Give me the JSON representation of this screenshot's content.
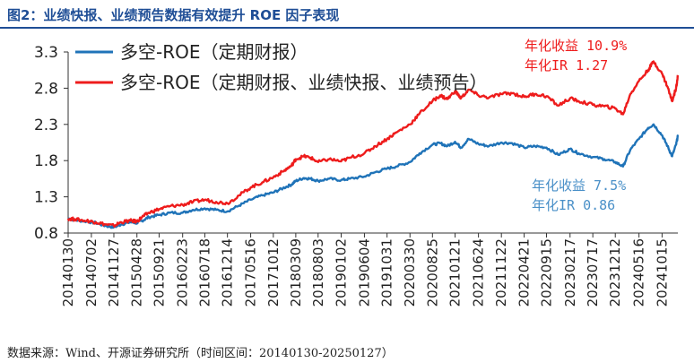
{
  "title": "图2：业绩快报、业绩预告数据有效提升 ROE 因子表现",
  "source": "数据来源：Wind、开源证券研究所（时间区间：20140130-20250127）",
  "colors": {
    "title": "#1f4e96",
    "blue": "#1f73b8",
    "red": "#ee1c1c",
    "blue_text": "#4a90c8",
    "red_text": "#ee1c1c"
  },
  "chart_data": {
    "type": "line",
    "ylim": [
      0.8,
      3.3
    ],
    "yticks": [
      "3.3",
      "2.8",
      "2.3",
      "1.8",
      "1.3",
      "0.8"
    ],
    "xlim": [
      "20140130",
      "20250127"
    ],
    "xticks": [
      "20140130",
      "20140702",
      "20141127",
      "20150428",
      "20150921",
      "20160223",
      "20160718",
      "20161214",
      "20170516",
      "20171012",
      "20180309",
      "20180803",
      "20190102",
      "20190604",
      "20191031",
      "20200330",
      "20200825",
      "20210121",
      "20210624",
      "20211122",
      "20220421",
      "20220915",
      "20230217",
      "20230717",
      "20231212",
      "20240516",
      "20241015"
    ],
    "legend": {
      "position": "top-left",
      "entries": [
        "多空-ROE（定期财报）",
        "多空-ROE（定期财报、业绩快报、业绩预告）"
      ]
    },
    "annotations": [
      {
        "series": 1,
        "lines": [
          "年化收益 10.9%",
          "年化IR 1.27"
        ]
      },
      {
        "series": 0,
        "lines": [
          "年化收益 7.5%",
          "年化IR 0.86"
        ]
      }
    ],
    "series": [
      {
        "name": "多空-ROE（定期财报）",
        "points": [
          [
            "20140130",
            1.0
          ],
          [
            "20140315",
            0.98
          ],
          [
            "20140601",
            0.96
          ],
          [
            "20140801",
            0.94
          ],
          [
            "20141001",
            0.9
          ],
          [
            "20141127",
            0.88
          ],
          [
            "20150115",
            0.92
          ],
          [
            "20150315",
            0.95
          ],
          [
            "20150428",
            0.94
          ],
          [
            "20150601",
            0.97
          ],
          [
            "20150715",
            1.02
          ],
          [
            "20150921",
            1.05
          ],
          [
            "20151201",
            1.08
          ],
          [
            "20160223",
            1.08
          ],
          [
            "20160501",
            1.12
          ],
          [
            "20160718",
            1.14
          ],
          [
            "20161001",
            1.12
          ],
          [
            "20161214",
            1.1
          ],
          [
            "20170301",
            1.18
          ],
          [
            "20170516",
            1.26
          ],
          [
            "20170801",
            1.32
          ],
          [
            "20171012",
            1.36
          ],
          [
            "20171215",
            1.42
          ],
          [
            "20180209",
            1.47
          ],
          [
            "20180309",
            1.52
          ],
          [
            "20180501",
            1.56
          ],
          [
            "20180615",
            1.55
          ],
          [
            "20180803",
            1.52
          ],
          [
            "20181015",
            1.55
          ],
          [
            "20190102",
            1.53
          ],
          [
            "20190301",
            1.55
          ],
          [
            "20190604",
            1.58
          ],
          [
            "20190815",
            1.64
          ],
          [
            "20191031",
            1.69
          ],
          [
            "20200101",
            1.72
          ],
          [
            "20200330",
            1.78
          ],
          [
            "20200601",
            1.9
          ],
          [
            "20200825",
            2.02
          ],
          [
            "20201015",
            2.04
          ],
          [
            "20201201",
            2.0
          ],
          [
            "20210121",
            2.06
          ],
          [
            "20210301",
            1.98
          ],
          [
            "20210420",
            2.1
          ],
          [
            "20210624",
            2.03
          ],
          [
            "20210901",
            2.0
          ],
          [
            "20211122",
            2.05
          ],
          [
            "20220201",
            2.04
          ],
          [
            "20220421",
            1.98
          ],
          [
            "20220701",
            2.0
          ],
          [
            "20220915",
            1.98
          ],
          [
            "20221201",
            1.88
          ],
          [
            "20230217",
            1.96
          ],
          [
            "20230415",
            1.9
          ],
          [
            "20230717",
            1.85
          ],
          [
            "20231001",
            1.82
          ],
          [
            "20231212",
            1.78
          ],
          [
            "20240201",
            1.72
          ],
          [
            "20240320",
            1.95
          ],
          [
            "20240516",
            2.1
          ],
          [
            "20240715",
            2.25
          ],
          [
            "20240820",
            2.3
          ],
          [
            "20241015",
            2.15
          ],
          [
            "20241120",
            2.0
          ],
          [
            "20241220",
            1.86
          ],
          [
            "20250115",
            2.02
          ],
          [
            "20250127",
            2.14
          ]
        ]
      },
      {
        "name": "多空-ROE（定期财报、业绩快报、业绩预告）",
        "points": [
          [
            "20140130",
            1.0
          ],
          [
            "20140315",
            0.99
          ],
          [
            "20140601",
            0.97
          ],
          [
            "20140801",
            0.95
          ],
          [
            "20141001",
            0.92
          ],
          [
            "20141127",
            0.9
          ],
          [
            "20150115",
            0.95
          ],
          [
            "20150315",
            0.97
          ],
          [
            "20150428",
            0.96
          ],
          [
            "20150601",
            1.02
          ],
          [
            "20150715",
            1.08
          ],
          [
            "20150921",
            1.13
          ],
          [
            "20151201",
            1.17
          ],
          [
            "20160223",
            1.19
          ],
          [
            "20160501",
            1.23
          ],
          [
            "20160718",
            1.26
          ],
          [
            "20161001",
            1.23
          ],
          [
            "20161214",
            1.21
          ],
          [
            "20170301",
            1.32
          ],
          [
            "20170516",
            1.43
          ],
          [
            "20170801",
            1.5
          ],
          [
            "20171012",
            1.57
          ],
          [
            "20171215",
            1.65
          ],
          [
            "20180209",
            1.73
          ],
          [
            "20180309",
            1.82
          ],
          [
            "20180501",
            1.86
          ],
          [
            "20180615",
            1.84
          ],
          [
            "20180803",
            1.78
          ],
          [
            "20181015",
            1.82
          ],
          [
            "20190102",
            1.79
          ],
          [
            "20190301",
            1.84
          ],
          [
            "20190604",
            1.9
          ],
          [
            "20190815",
            2.0
          ],
          [
            "20191031",
            2.1
          ],
          [
            "20200101",
            2.19
          ],
          [
            "20200330",
            2.3
          ],
          [
            "20200601",
            2.45
          ],
          [
            "20200825",
            2.62
          ],
          [
            "20201015",
            2.7
          ],
          [
            "20201201",
            2.65
          ],
          [
            "20210121",
            2.76
          ],
          [
            "20210301",
            2.66
          ],
          [
            "20210420",
            2.78
          ],
          [
            "20210624",
            2.7
          ],
          [
            "20210901",
            2.67
          ],
          [
            "20211122",
            2.72
          ],
          [
            "20220201",
            2.73
          ],
          [
            "20220421",
            2.68
          ],
          [
            "20220701",
            2.72
          ],
          [
            "20220915",
            2.69
          ],
          [
            "20221201",
            2.56
          ],
          [
            "20230217",
            2.66
          ],
          [
            "20230415",
            2.62
          ],
          [
            "20230717",
            2.57
          ],
          [
            "20231001",
            2.55
          ],
          [
            "20231212",
            2.52
          ],
          [
            "20240201",
            2.44
          ],
          [
            "20240320",
            2.72
          ],
          [
            "20240516",
            2.9
          ],
          [
            "20240715",
            3.05
          ],
          [
            "20240820",
            3.17
          ],
          [
            "20241015",
            3.0
          ],
          [
            "20241120",
            2.82
          ],
          [
            "20241220",
            2.62
          ],
          [
            "20250115",
            2.8
          ],
          [
            "20250127",
            2.98
          ]
        ]
      }
    ]
  }
}
